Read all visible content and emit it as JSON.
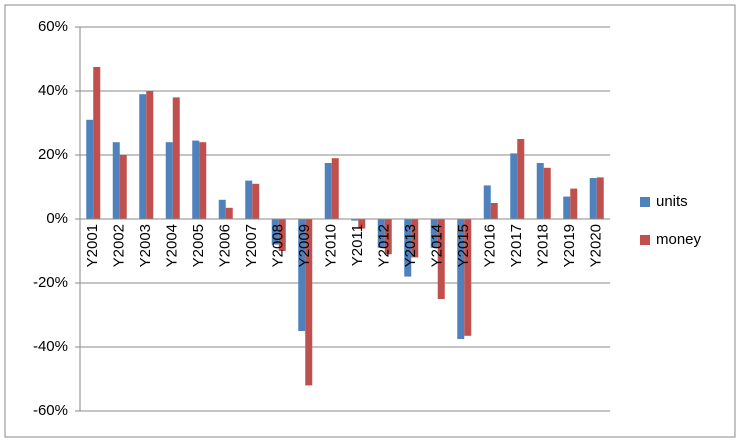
{
  "chart_data": {
    "type": "bar",
    "categories": [
      "Y2001",
      "Y2002",
      "Y2003",
      "Y2004",
      "Y2005",
      "Y2006",
      "Y2007",
      "Y2008",
      "Y2009",
      "Y2010",
      "Y2011",
      "Y2012",
      "Y2013",
      "Y2014",
      "Y2015",
      "Y2016",
      "Y2017",
      "Y2018",
      "Y2019",
      "Y2020"
    ],
    "series": [
      {
        "name": "units",
        "color": "#4f81bd",
        "values": [
          31,
          24,
          39,
          24,
          24.5,
          6,
          12,
          -8,
          -35,
          17.5,
          -0.5,
          -9,
          -18,
          -9,
          -37.5,
          10.5,
          20.5,
          17.5,
          7,
          12.8
        ]
      },
      {
        "name": "money",
        "color": "#c0504d",
        "values": [
          47.5,
          20,
          40,
          38,
          24,
          3.5,
          11,
          -10,
          -52,
          19,
          -3,
          -11,
          -12,
          -25,
          -36.5,
          5,
          25,
          16,
          9.5,
          13
        ]
      }
    ],
    "ylim": [
      -60,
      60
    ],
    "yticks": [
      {
        "value": -60,
        "label": "-60%"
      },
      {
        "value": -40,
        "label": "-40%"
      },
      {
        "value": -20,
        "label": "-20%"
      },
      {
        "value": 0,
        "label": "0%"
      },
      {
        "value": 20,
        "label": "20%"
      },
      {
        "value": 40,
        "label": "40%"
      },
      {
        "value": 60,
        "label": "60%"
      }
    ],
    "grid": true,
    "legend": "right"
  }
}
